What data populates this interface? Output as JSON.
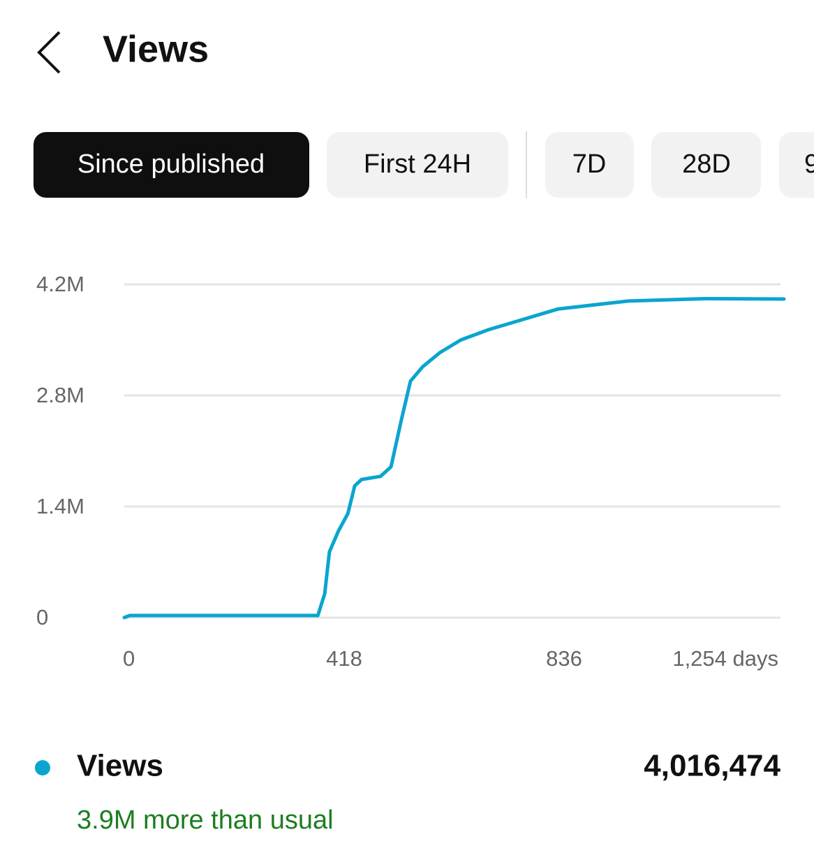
{
  "header": {
    "title": "Views"
  },
  "tabs": [
    "Since published",
    "First 24H",
    "7D",
    "28D",
    "9"
  ],
  "chart_data": {
    "type": "line",
    "x": [
      0,
      10,
      368,
      381,
      390,
      407,
      425,
      438,
      451,
      487,
      507,
      527,
      544,
      567,
      600,
      640,
      693,
      759,
      825,
      892,
      958,
      1104,
      1254
    ],
    "series": [
      {
        "name": "Views",
        "color": "#0aa5cf",
        "values": [
          0,
          26000,
          26000,
          300000,
          830000,
          1090000,
          1310000,
          1660000,
          1740000,
          1780000,
          1900000,
          2500000,
          2980000,
          3160000,
          3340000,
          3500000,
          3630000,
          3760000,
          3890000,
          3940000,
          3990000,
          4020000,
          4015000
        ]
      }
    ],
    "xlim": [
      0,
      1254
    ],
    "xticks": [
      0,
      418,
      836,
      {
        "value": 1254,
        "label": "1,254 days"
      }
    ],
    "ylim": [
      0,
      4200000
    ],
    "yticks": [
      0,
      {
        "value": 1400000,
        "label": "1.4M"
      },
      {
        "value": 2800000,
        "label": "2.8M"
      },
      {
        "value": 4200000,
        "label": "4.2M"
      }
    ],
    "grid": true
  },
  "summary": {
    "total": "4,016,474",
    "note": "3.9M more than usual"
  }
}
